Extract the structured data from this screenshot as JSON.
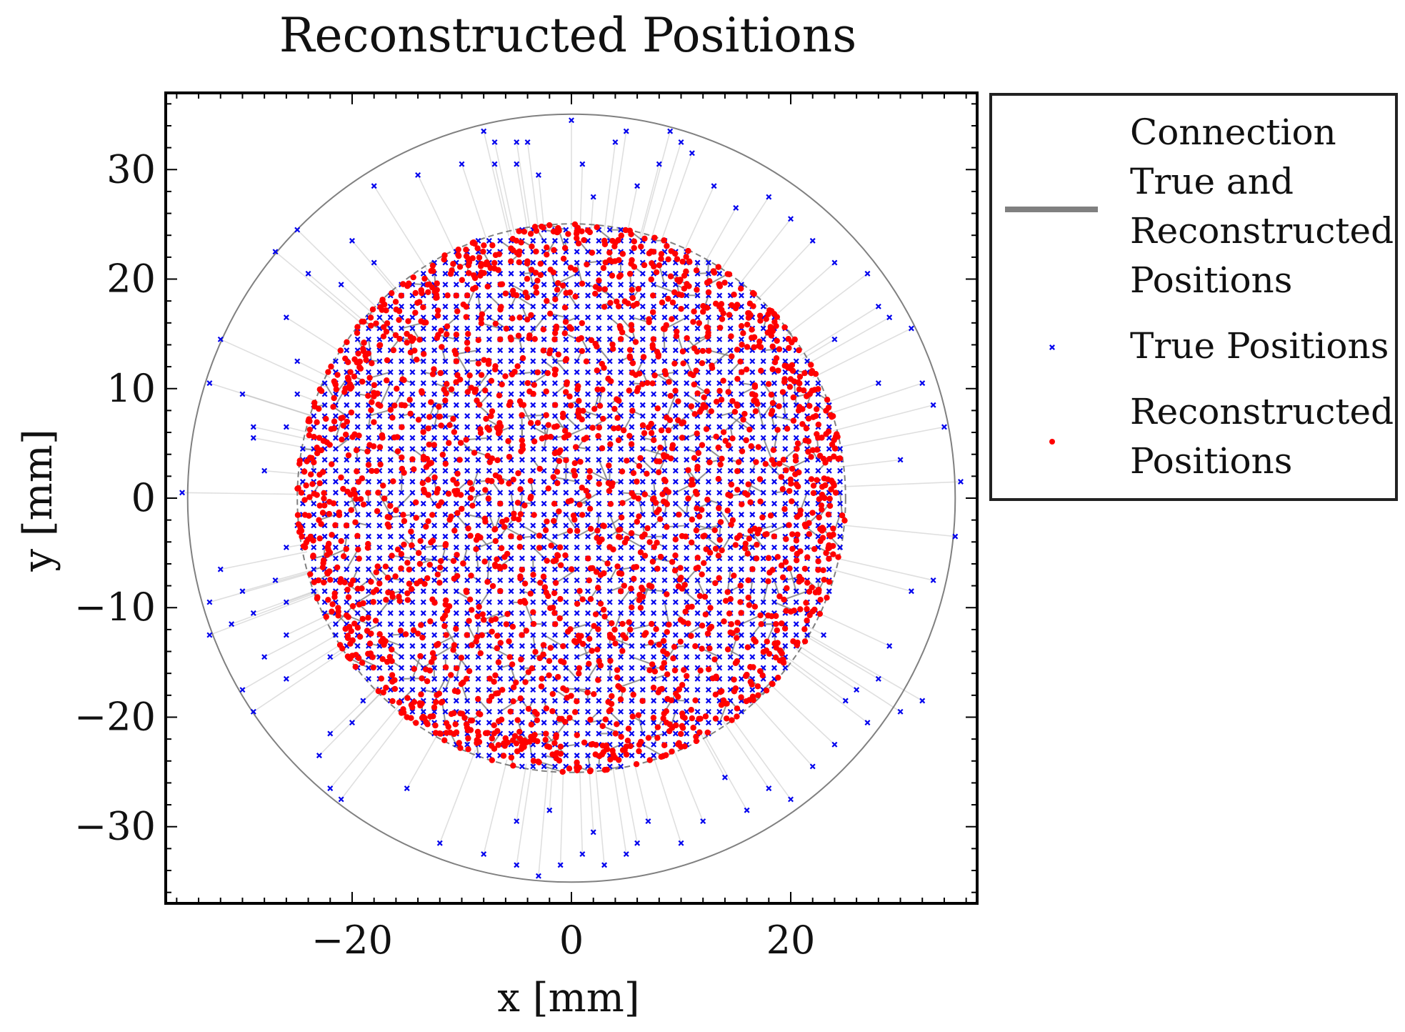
{
  "chart_data": {
    "type": "scatter",
    "title": "Reconstructed Positions",
    "xlabel": "x [mm]",
    "ylabel": "y [mm]",
    "xlim": [
      -37,
      37
    ],
    "ylim": [
      -37,
      37
    ],
    "xticks": [
      -20,
      0,
      20
    ],
    "xtick_labels": [
      "−20",
      "0",
      "20"
    ],
    "yticks": [
      -30,
      -20,
      -10,
      0,
      10,
      20,
      30
    ],
    "ytick_labels": [
      "−30",
      "−20",
      "−10",
      "0",
      "10",
      "20",
      "30"
    ],
    "minor_tick_step": 2,
    "grid": false,
    "legend_position": "outside-right-top",
    "circles": [
      {
        "center": [
          0,
          0
        ],
        "radius": 35,
        "style": "solid",
        "color": "#808080"
      },
      {
        "center": [
          0,
          0
        ],
        "radius": 25,
        "style": "dashed",
        "color": "#808080"
      }
    ],
    "series": [
      {
        "name": "Connection True and Reconstructed Positions",
        "kind": "segments",
        "color": "#808080",
        "note_inner_grid": {
          "extent": 25,
          "pitch": 1,
          "displacement_max": 2.3
        },
        "segments_sample": [
          [
            [
              -8,
              12
            ],
            [
              -6.5,
              13.2
            ]
          ],
          [
            [
              4,
              6
            ],
            [
              5.7,
              4.8
            ]
          ],
          [
            [
              -12,
              -8
            ],
            [
              -10.6,
              -9.5
            ]
          ],
          [
            [
              10,
              -14
            ],
            [
              11.2,
              -12.4
            ]
          ],
          [
            [
              -2,
              18
            ],
            [
              -0.5,
              19.6
            ]
          ],
          [
            [
              15,
              3
            ],
            [
              13.4,
              4.3
            ]
          ]
        ]
      },
      {
        "name": "True Positions",
        "kind": "markers",
        "marker": "x",
        "color": "#0000ee",
        "grid_pitch_mm": 1,
        "inner_radius_mm": 25,
        "outer_points": [
          [
            -35.5,
            0.5
          ],
          [
            -32,
            14.5
          ],
          [
            -33,
            10.5
          ],
          [
            -30,
            9.5
          ],
          [
            -29,
            5.5
          ],
          [
            -29,
            6.5
          ],
          [
            -32,
            -6.5
          ],
          [
            -33,
            -9.5
          ],
          [
            -33,
            -12.5
          ],
          [
            -31,
            -11.5
          ],
          [
            -29,
            -10.5
          ],
          [
            -28,
            -14.5
          ],
          [
            -27,
            -7.5
          ],
          [
            -30,
            -17.5
          ],
          [
            -29,
            -19.5
          ],
          [
            -26,
            -16.5
          ],
          [
            -26,
            -12.5
          ],
          [
            -26,
            -9.5
          ],
          [
            -26,
            -4.5
          ],
          [
            -27,
            22.5
          ],
          [
            -25,
            24.5
          ],
          [
            -24,
            20.5
          ],
          [
            -26,
            16.5
          ],
          [
            -25,
            12.5
          ],
          [
            -25,
            9.5
          ],
          [
            -26,
            6.5
          ],
          [
            -24,
            3.5
          ],
          [
            -25,
            -2.5
          ],
          [
            -23,
            -23.5
          ],
          [
            -22,
            -26.5
          ],
          [
            -21,
            -27.5
          ],
          [
            -22,
            -21.5
          ],
          [
            -20,
            -20.5
          ],
          [
            -19,
            -18.5
          ],
          [
            -21,
            19.5
          ],
          [
            -18,
            21.5
          ],
          [
            -20,
            23.5
          ],
          [
            -18,
            28.5
          ],
          [
            -14,
            29.5
          ],
          [
            -10,
            30.5
          ],
          [
            -8,
            33.5
          ],
          [
            -7,
            30.5
          ],
          [
            -5,
            30.5
          ],
          [
            -5,
            32.5
          ],
          [
            -7,
            32.5
          ],
          [
            -4,
            32.5
          ],
          [
            -3,
            29.5
          ],
          [
            0,
            34.5
          ],
          [
            1,
            30.5
          ],
          [
            2,
            27.5
          ],
          [
            4,
            32.5
          ],
          [
            5,
            33.5
          ],
          [
            6,
            28.5
          ],
          [
            8,
            30.5
          ],
          [
            9,
            33.5
          ],
          [
            10,
            32.5
          ],
          [
            11,
            31.5
          ],
          [
            13,
            28.5
          ],
          [
            15,
            26.5
          ],
          [
            18,
            27.5
          ],
          [
            20,
            25.5
          ],
          [
            22,
            23.5
          ],
          [
            24,
            21.5
          ],
          [
            27,
            20.5
          ],
          [
            28,
            17.5
          ],
          [
            29,
            16.5
          ],
          [
            31,
            15.5
          ],
          [
            32,
            10.5
          ],
          [
            33,
            8.5
          ],
          [
            34,
            6.5
          ],
          [
            35.5,
            1.5
          ],
          [
            35,
            -3.5
          ],
          [
            33,
            -7.5
          ],
          [
            31,
            -8.5
          ],
          [
            29,
            -13.5
          ],
          [
            28,
            -16.5
          ],
          [
            26,
            -17.5
          ],
          [
            27,
            -20.5
          ],
          [
            24,
            -22.5
          ],
          [
            22,
            -24.5
          ],
          [
            20,
            -27.5
          ],
          [
            18,
            -26.5
          ],
          [
            16,
            -28.5
          ],
          [
            12,
            -29.5
          ],
          [
            10,
            -31.5
          ],
          [
            7,
            -29.5
          ],
          [
            5,
            -32.5
          ],
          [
            3,
            -33.5
          ],
          [
            1,
            -32.5
          ],
          [
            -1,
            -33.5
          ],
          [
            -3,
            -34.5
          ],
          [
            -5,
            -33.5
          ],
          [
            -8,
            -32.5
          ],
          [
            -12,
            -31.5
          ],
          [
            -5,
            -29.5
          ],
          [
            -2,
            -28.5
          ],
          [
            2,
            -30.5
          ],
          [
            6,
            -31.5
          ],
          [
            -15,
            -26.5
          ],
          [
            14,
            -25.5
          ],
          [
            30,
            -19.5
          ],
          [
            32,
            -18.5
          ],
          [
            25,
            -18.5
          ],
          [
            -30,
            -8.5
          ],
          [
            30,
            3.5
          ],
          [
            28,
            10.5
          ],
          [
            24,
            14.5
          ],
          [
            -28,
            2.5
          ],
          [
            -22,
            -14.5
          ],
          [
            23,
            -12.5
          ]
        ]
      },
      {
        "name": "Reconstructed Positions",
        "kind": "markers",
        "marker": "o",
        "color": "#ff0000",
        "radius_mm": 25,
        "point_count_estimate": 2100
      }
    ]
  },
  "legend": {
    "entries": [
      {
        "label_lines": [
          "Connection",
          "True and",
          "Reconstructed",
          "Positions"
        ],
        "symbol": "line",
        "color": "#808080"
      },
      {
        "label_lines": [
          "True Positions"
        ],
        "symbol": "x",
        "color": "#0000ee"
      },
      {
        "label_lines": [
          "Reconstructed",
          "Positions"
        ],
        "symbol": "dot",
        "color": "#ff0000"
      }
    ]
  }
}
